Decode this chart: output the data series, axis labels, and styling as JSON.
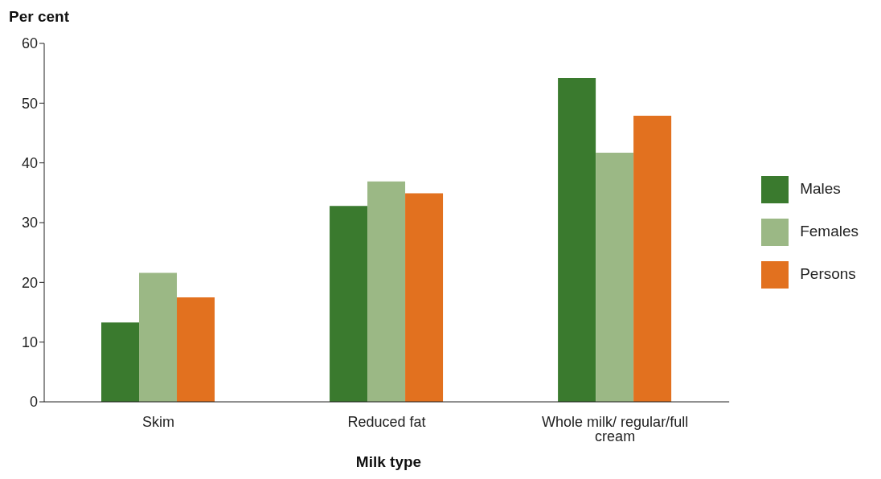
{
  "chart_data": {
    "type": "bar",
    "xlabel": "Milk type",
    "ylabel": "Per cent",
    "categories": [
      "Skim",
      "Reduced fat",
      "Whole milk/ regular/full cream"
    ],
    "series": [
      {
        "name": "Males",
        "color": "#3a7a2e",
        "values": [
          13.3,
          32.8,
          54.2
        ]
      },
      {
        "name": "Females",
        "color": "#9bb885",
        "values": [
          21.6,
          36.9,
          41.7
        ]
      },
      {
        "name": "Persons",
        "color": "#e2711f",
        "values": [
          17.5,
          34.9,
          47.9
        ]
      }
    ],
    "ylim": [
      0,
      60
    ],
    "yticks": [
      0,
      10,
      20,
      30,
      40,
      50,
      60
    ],
    "grid": false,
    "legend": "right"
  }
}
